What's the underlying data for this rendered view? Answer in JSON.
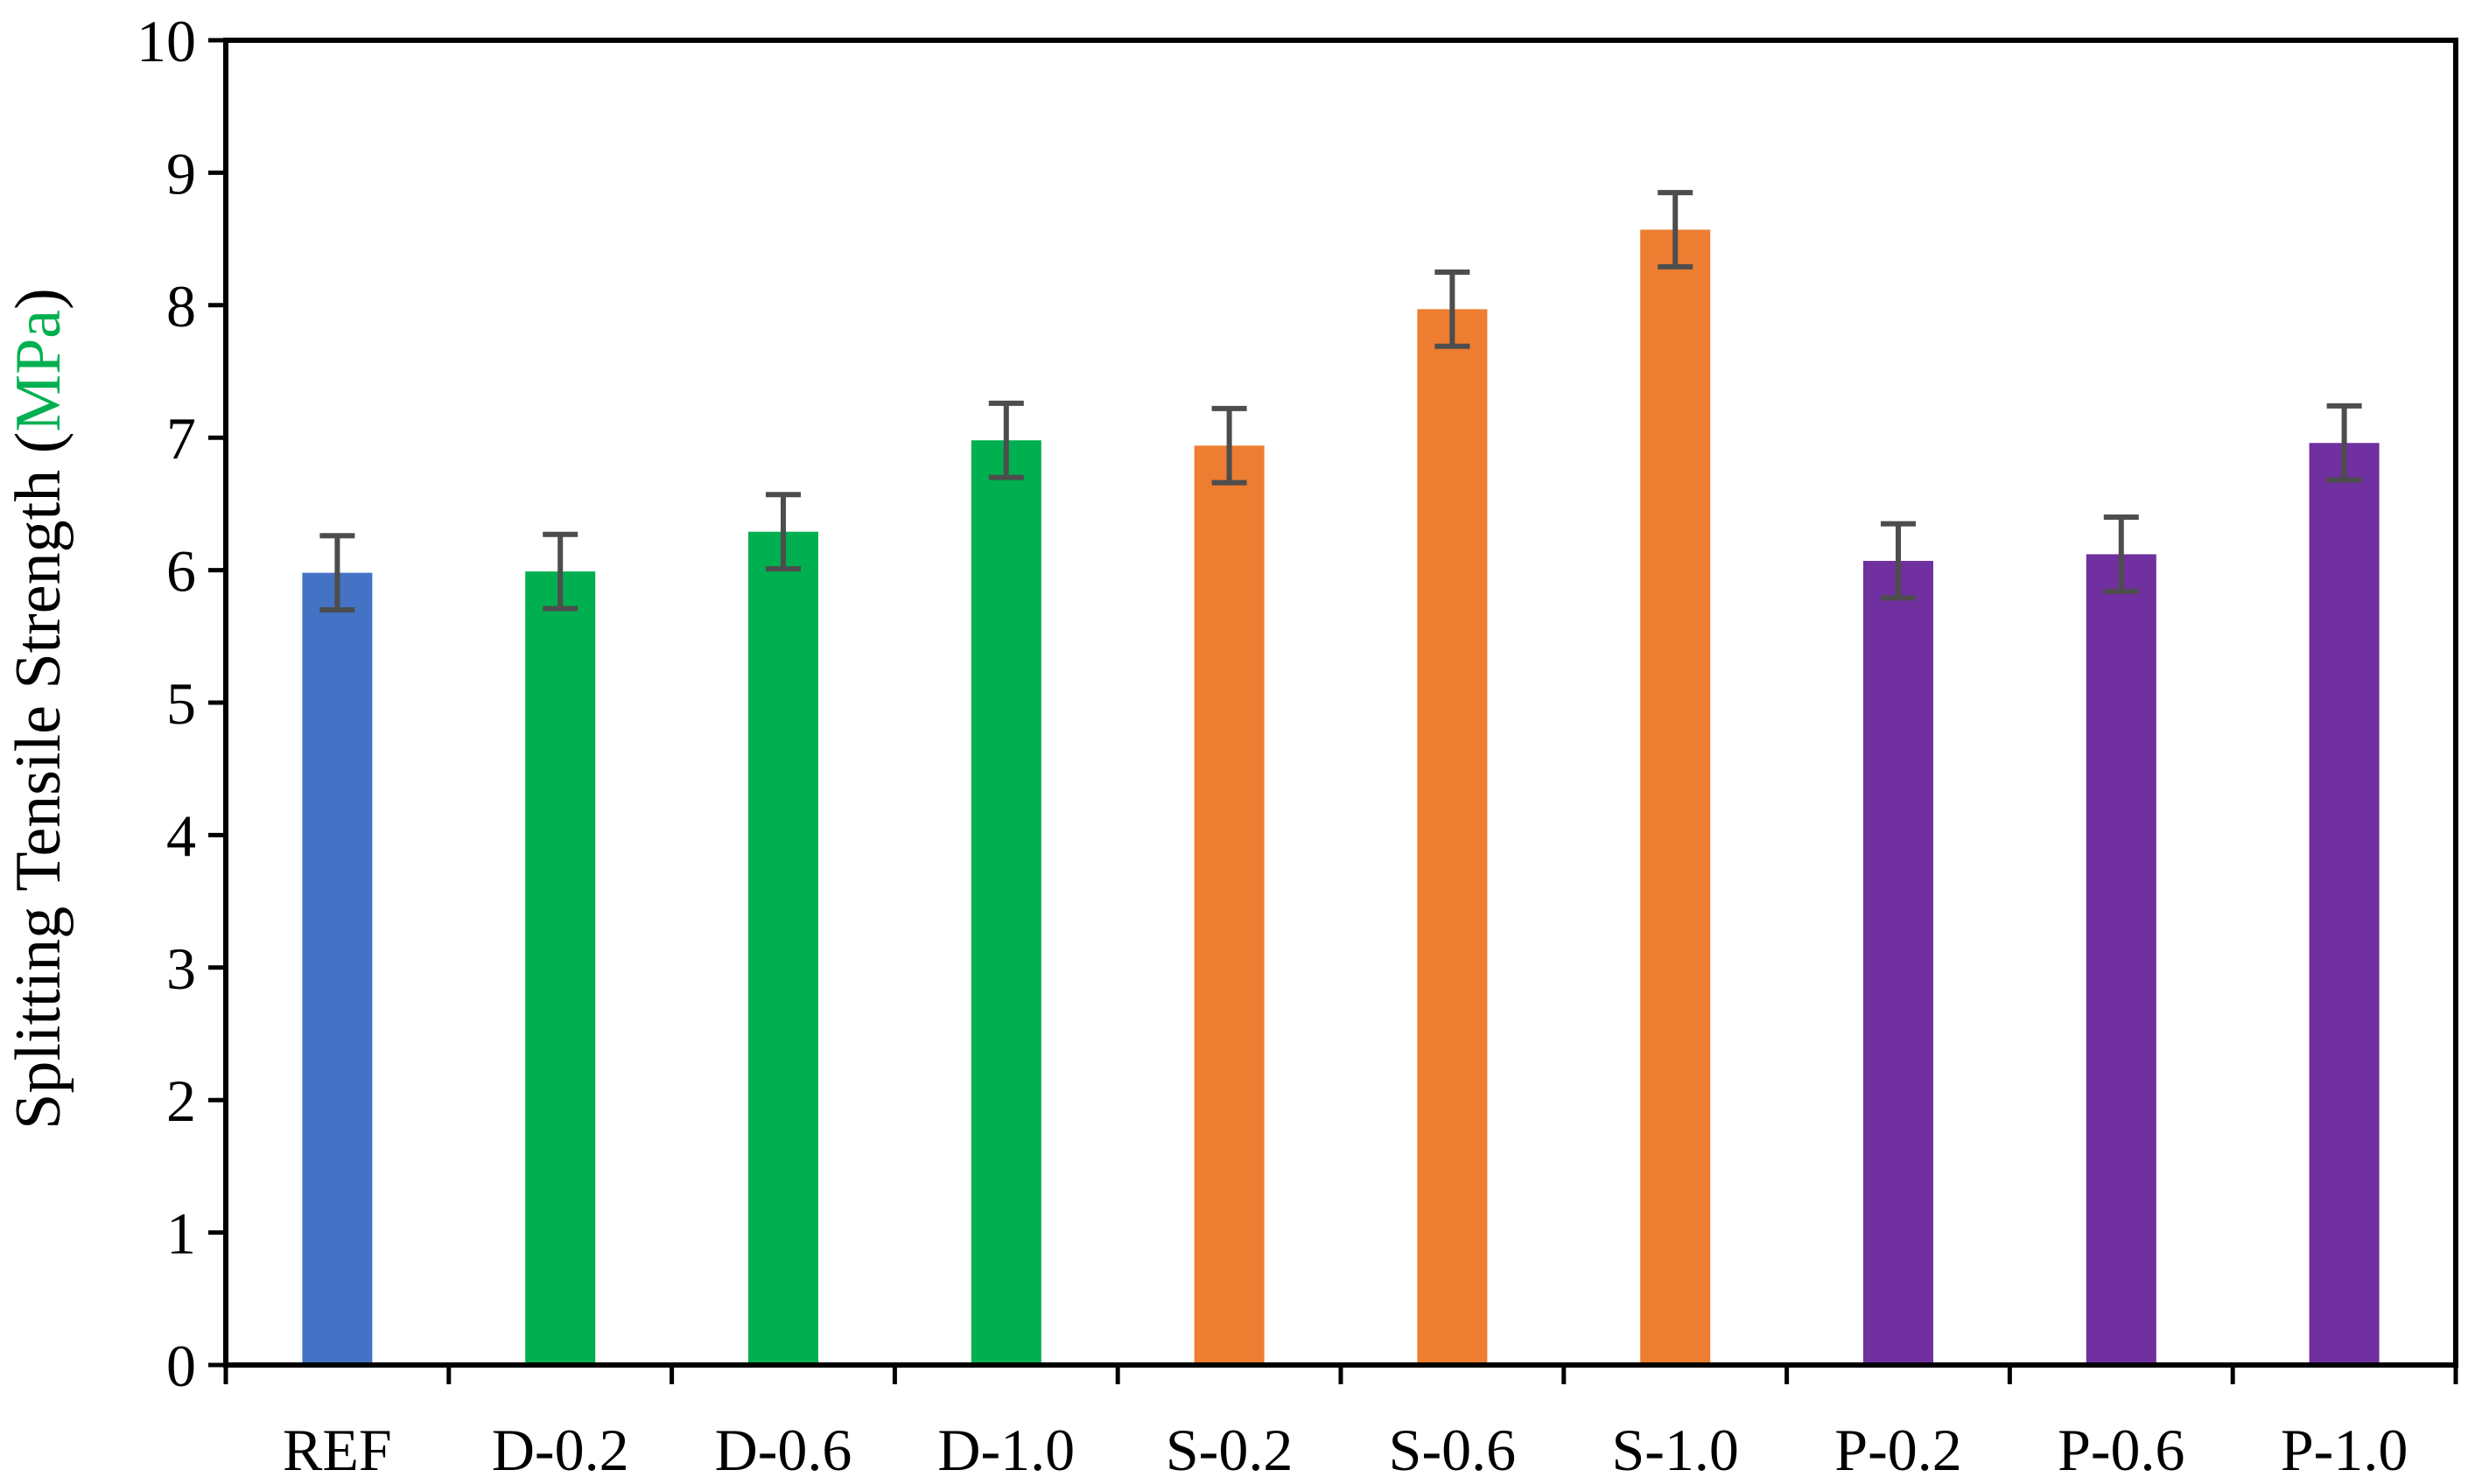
{
  "chart_data": {
    "type": "bar",
    "title": "",
    "xlabel": "",
    "ylabel": {
      "prefix": "Splitting Tensile Strength (",
      "unit": "MPa",
      "suffix": ")"
    },
    "ylim": [
      0,
      10
    ],
    "yticks": [
      "0",
      "1",
      "2",
      "3",
      "4",
      "5",
      "6",
      "7",
      "8",
      "9",
      "10"
    ],
    "categories": [
      "REF",
      "D-0.2",
      "D-0.6",
      "D-1.0",
      "S-0.2",
      "S-0.6",
      "S-1.0",
      "P-0.2",
      "P-0.6",
      "P-1.0"
    ],
    "values": [
      5.98,
      5.99,
      6.29,
      6.98,
      6.94,
      7.97,
      8.57,
      6.07,
      6.12,
      6.96
    ],
    "error": [
      0.28,
      0.28,
      0.28,
      0.28,
      0.28,
      0.28,
      0.28,
      0.28,
      0.28,
      0.28
    ],
    "groups": [
      "REF",
      "D",
      "D",
      "D",
      "S",
      "S",
      "S",
      "P",
      "P",
      "P"
    ],
    "colors": {
      "REF": "#4472C4",
      "D": "#00B050",
      "S": "#ED7D31",
      "P": "#7030A0",
      "unit": "#00B050",
      "error_bar": "#4D4D4D",
      "axis": "#000000"
    }
  }
}
